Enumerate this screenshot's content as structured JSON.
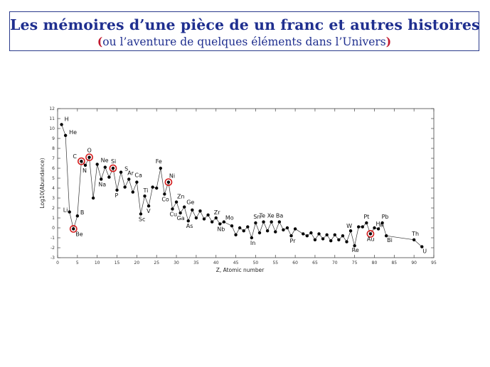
{
  "header": {
    "title": "Les mémoires d’une pièce de un franc et autres histoires",
    "subtitle_open": "(",
    "subtitle_text": "ou l’aventure de quelques éléments dans l’Univers",
    "subtitle_close": ")"
  },
  "chart_data": {
    "type": "line",
    "title": "",
    "xlabel": "Z, Atomic number",
    "ylabel": "Log10(Abundance)",
    "xlim": [
      0,
      95
    ],
    "ylim": [
      -3,
      12
    ],
    "xticks": [
      0,
      5,
      10,
      15,
      20,
      25,
      30,
      35,
      40,
      45,
      50,
      55,
      60,
      65,
      70,
      75,
      80,
      85,
      90,
      95
    ],
    "yticks": [
      -3,
      -2,
      -1,
      0,
      1,
      2,
      3,
      4,
      5,
      6,
      7,
      8,
      9,
      10,
      11,
      12
    ],
    "grid": false,
    "marker_color": "#000000",
    "highlight_color": "#d42020",
    "series": [
      {
        "x": [
          1,
          2,
          3,
          4,
          5,
          6,
          7,
          8,
          9,
          10,
          11,
          12,
          13,
          14,
          15,
          16,
          17,
          18,
          19,
          20,
          21,
          22,
          23,
          24,
          25,
          26,
          27,
          28,
          29,
          30,
          31,
          32,
          33,
          34,
          35,
          36,
          37,
          38,
          39,
          40,
          41,
          42,
          44,
          45,
          46,
          47,
          48,
          49,
          50,
          51,
          52,
          53,
          54,
          55,
          56,
          57,
          58,
          59,
          60,
          62,
          63,
          64,
          65,
          66,
          67,
          68,
          69,
          70,
          71,
          72,
          73,
          74,
          75,
          76,
          77,
          78,
          79,
          80,
          81,
          82,
          83,
          90,
          92
        ],
        "y": [
          10.4,
          9.3,
          1.6,
          -0.1,
          1.2,
          6.7,
          6.3,
          7.1,
          3.0,
          6.4,
          4.9,
          6.1,
          5.1,
          6.0,
          3.8,
          5.6,
          4.1,
          4.9,
          3.6,
          4.6,
          1.4,
          3.2,
          2.2,
          4.1,
          4.0,
          6.0,
          3.4,
          4.6,
          1.9,
          2.6,
          1.5,
          2.1,
          0.7,
          1.8,
          1.0,
          1.7,
          0.9,
          1.3,
          0.6,
          1.0,
          0.4,
          0.6,
          0.2,
          -0.7,
          0.0,
          -0.3,
          0.1,
          -1.0,
          0.5,
          -0.5,
          0.6,
          -0.3,
          0.6,
          -0.4,
          0.6,
          -0.2,
          0.0,
          -0.8,
          -0.1,
          -0.6,
          -0.8,
          -0.5,
          -1.2,
          -0.6,
          -1.1,
          -0.7,
          -1.3,
          -0.7,
          -1.2,
          -0.8,
          -1.4,
          -0.3,
          -1.8,
          0.1,
          0.1,
          0.5,
          -0.6,
          0.0,
          -0.1,
          0.5,
          -0.8,
          -1.2,
          -1.9
        ]
      }
    ],
    "highlighted": [
      {
        "label": "Be",
        "x": 4,
        "y": -0.1
      },
      {
        "label": "C",
        "x": 6,
        "y": 6.7
      },
      {
        "label": "O",
        "x": 8,
        "y": 7.1
      },
      {
        "label": "Si",
        "x": 14,
        "y": 6.0
      },
      {
        "label": "Ni",
        "x": 28,
        "y": 4.6
      },
      {
        "label": "Au",
        "x": 79,
        "y": -0.6
      }
    ],
    "point_labels": [
      {
        "text": "H",
        "x": 1,
        "y": 10.4
      },
      {
        "text": "He",
        "x": 2,
        "y": 9.3
      },
      {
        "text": "Li",
        "x": 3,
        "y": 1.6
      },
      {
        "text": "Be",
        "x": 4,
        "y": -0.1
      },
      {
        "text": "B",
        "x": 5,
        "y": 1.2
      },
      {
        "text": "C",
        "x": 6,
        "y": 6.7
      },
      {
        "text": "N",
        "x": 7,
        "y": 6.3
      },
      {
        "text": "O",
        "x": 8,
        "y": 7.1
      },
      {
        "text": "Ne",
        "x": 10,
        "y": 6.4
      },
      {
        "text": "Na",
        "x": 11,
        "y": 4.9
      },
      {
        "text": "Si",
        "x": 14,
        "y": 6.0
      },
      {
        "text": "P",
        "x": 15,
        "y": 3.8
      },
      {
        "text": "S",
        "x": 16,
        "y": 5.6
      },
      {
        "text": "Ar",
        "x": 18,
        "y": 4.9
      },
      {
        "text": "Ca",
        "x": 20,
        "y": 4.6
      },
      {
        "text": "Sc",
        "x": 21,
        "y": 1.4
      },
      {
        "text": "Ti",
        "x": 22,
        "y": 3.2
      },
      {
        "text": "V",
        "x": 23,
        "y": 2.2
      },
      {
        "text": "Fe",
        "x": 26,
        "y": 6.0
      },
      {
        "text": "Co",
        "x": 27,
        "y": 3.4
      },
      {
        "text": "Ni",
        "x": 28,
        "y": 4.6
      },
      {
        "text": "Cu",
        "x": 29,
        "y": 1.9
      },
      {
        "text": "Zn",
        "x": 30,
        "y": 2.6
      },
      {
        "text": "Ga",
        "x": 31,
        "y": 1.5
      },
      {
        "text": "Ge",
        "x": 32,
        "y": 2.1
      },
      {
        "text": "As",
        "x": 33,
        "y": 0.7
      },
      {
        "text": "Zr",
        "x": 40,
        "y": 1.0
      },
      {
        "text": "Nb",
        "x": 41,
        "y": 0.4
      },
      {
        "text": "Mo",
        "x": 42,
        "y": 0.6
      },
      {
        "text": "Sn",
        "x": 50,
        "y": 0.5
      },
      {
        "text": "In",
        "x": 49,
        "y": -1.0
      },
      {
        "text": "Te",
        "x": 52,
        "y": 0.6
      },
      {
        "text": "Xe",
        "x": 54,
        "y": 0.6
      },
      {
        "text": "Ba",
        "x": 56,
        "y": 0.6
      },
      {
        "text": "Pr",
        "x": 59,
        "y": -0.8
      },
      {
        "text": "W",
        "x": 74,
        "y": -0.3
      },
      {
        "text": "Re",
        "x": 75,
        "y": -1.8
      },
      {
        "text": "Pt",
        "x": 78,
        "y": 0.5
      },
      {
        "text": "Au",
        "x": 79,
        "y": -0.6
      },
      {
        "text": "Hg",
        "x": 80,
        "y": 0.0
      },
      {
        "text": "Pb",
        "x": 82,
        "y": 0.5
      },
      {
        "text": "Bi",
        "x": 83,
        "y": -0.8
      },
      {
        "text": "Th",
        "x": 90,
        "y": -1.2
      },
      {
        "text": "U",
        "x": 92,
        "y": -1.9
      }
    ]
  }
}
